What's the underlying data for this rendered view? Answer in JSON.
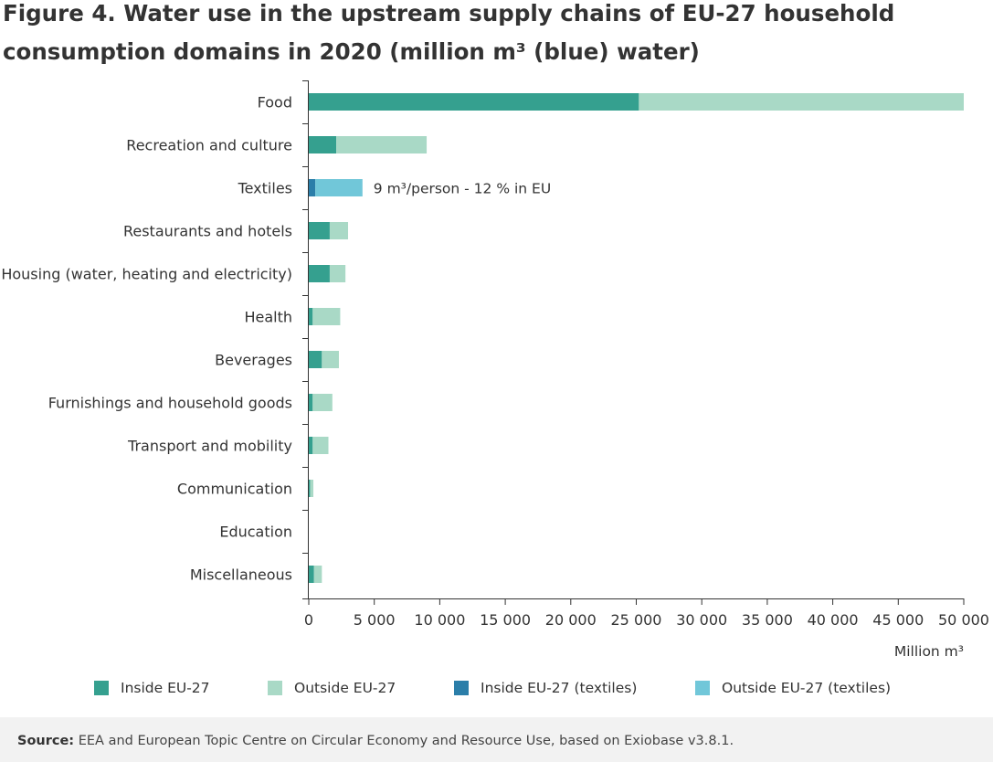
{
  "title": "Figure 4. Water use in the upstream supply chains of EU-27 household consumption domains in 2020 (million m³ (blue) water)",
  "colors": {
    "inside": "#35a08f",
    "outside": "#a9d9c6",
    "inside_textiles": "#2b7ea9",
    "outside_textiles": "#71c7d9",
    "axis": "#333333"
  },
  "chart_data": {
    "type": "bar",
    "orientation": "horizontal",
    "stacked": true,
    "categories": [
      "Food",
      "Recreation and culture",
      "Textiles",
      "Restaurants and hotels",
      "Housing (water, heating and electricity)",
      "Health",
      "Beverages",
      "Furnishings and household goods",
      "Transport and mobility",
      "Communication",
      "Education",
      "Miscellaneous"
    ],
    "series": [
      {
        "name": "Inside EU-27",
        "color": "#35a08f",
        "values": [
          25200,
          2100,
          0,
          1600,
          1600,
          300,
          1000,
          300,
          300,
          100,
          0,
          400
        ]
      },
      {
        "name": "Outside EU-27",
        "color": "#a9d9c6",
        "values": [
          24800,
          6900,
          0,
          1400,
          1200,
          2100,
          1300,
          1500,
          1200,
          250,
          0,
          600
        ]
      },
      {
        "name": "Inside EU-27 (textiles)",
        "color": "#2b7ea9",
        "values": [
          0,
          0,
          500,
          0,
          0,
          0,
          0,
          0,
          0,
          0,
          0,
          0
        ]
      },
      {
        "name": "Outside EU-27 (textiles)",
        "color": "#71c7d9",
        "values": [
          0,
          0,
          3600,
          0,
          0,
          0,
          0,
          0,
          0,
          0,
          0,
          0
        ]
      }
    ],
    "xlim": [
      0,
      50000
    ],
    "x_ticks": [
      0,
      5000,
      10000,
      15000,
      20000,
      25000,
      30000,
      35000,
      40000,
      45000,
      50000
    ],
    "x_tick_labels": [
      "0",
      "5 000",
      "10 000",
      "15 000",
      "20 000",
      "25 000",
      "30 000",
      "35 000",
      "40 000",
      "45 000",
      "50 000"
    ],
    "xlabel": "Million m³",
    "annotations": [
      {
        "category": "Textiles",
        "text": "9 m³/person - 12 % in EU"
      }
    ],
    "legend_position": "bottom",
    "grid": false
  },
  "source": {
    "label": "Source:",
    "text": " EEA and European Topic Centre on Circular Economy and Resource Use, based on Exiobase v3.8.1."
  }
}
